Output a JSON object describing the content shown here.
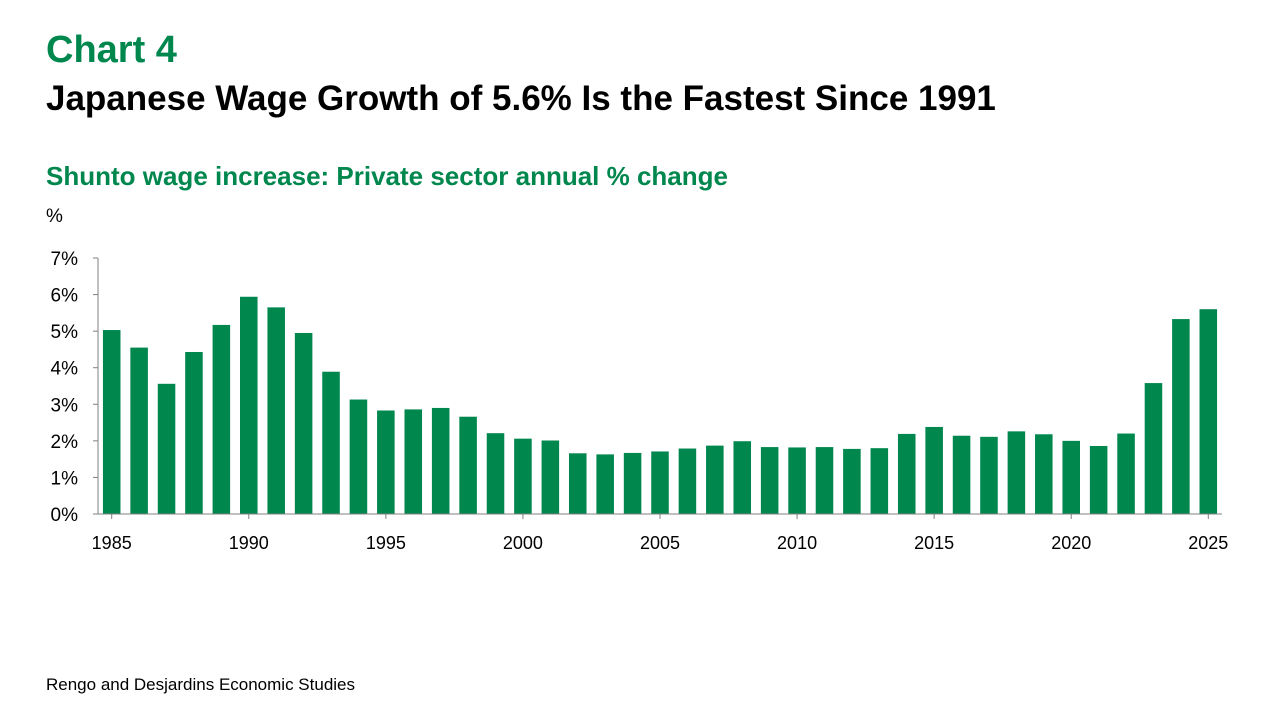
{
  "chart_label": "Chart 4",
  "title": "Japanese Wage Growth of 5.6% Is the Fastest Since 1991",
  "subtitle": "Shunto wage increase: Private sector annual % change",
  "source": "Rengo and Desjardins Economic Studies",
  "colors": {
    "accent": "#00874e",
    "bar": "#00874e",
    "text": "#000000",
    "axis": "#808080"
  },
  "chart_data": {
    "type": "bar",
    "ylabel": "%",
    "ylim": [
      0,
      7
    ],
    "y_ticks": [
      "0%",
      "1%",
      "2%",
      "3%",
      "4%",
      "5%",
      "6%",
      "7%"
    ],
    "x_tick_labels": [
      "1985",
      "1990",
      "1995",
      "2000",
      "2005",
      "2010",
      "2015",
      "2020",
      "2025"
    ],
    "grid": false,
    "legend": "none",
    "categories": [
      1985,
      1986,
      1987,
      1988,
      1989,
      1990,
      1991,
      1992,
      1993,
      1994,
      1995,
      1996,
      1997,
      1998,
      1999,
      2000,
      2001,
      2002,
      2003,
      2004,
      2005,
      2006,
      2007,
      2008,
      2009,
      2010,
      2011,
      2012,
      2013,
      2014,
      2015,
      2016,
      2017,
      2018,
      2019,
      2020,
      2021,
      2022,
      2023,
      2024,
      2025
    ],
    "values": [
      5.03,
      4.55,
      3.56,
      4.43,
      5.17,
      5.94,
      5.65,
      4.95,
      3.89,
      3.13,
      2.83,
      2.86,
      2.9,
      2.66,
      2.21,
      2.06,
      2.01,
      1.66,
      1.63,
      1.67,
      1.71,
      1.79,
      1.87,
      1.99,
      1.83,
      1.82,
      1.83,
      1.78,
      1.8,
      2.19,
      2.38,
      2.14,
      2.11,
      2.26,
      2.18,
      2.0,
      1.86,
      2.2,
      3.58,
      5.33,
      5.6
    ]
  }
}
